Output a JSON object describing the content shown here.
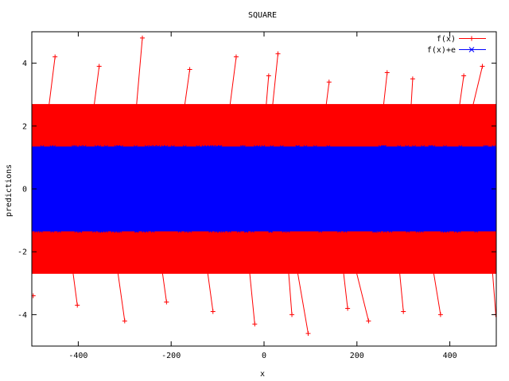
{
  "chart_data": {
    "type": "line",
    "title": "SQUARE",
    "xlabel": "x",
    "ylabel": "predictions",
    "xlim": [
      -500,
      500
    ],
    "ylim": [
      -5,
      5
    ],
    "xticks": [
      -400,
      -200,
      0,
      200,
      400
    ],
    "yticks": [
      -4,
      -2,
      0,
      2,
      4
    ],
    "xtick_labels": [
      "-400",
      "-200",
      "0",
      "200",
      "400"
    ],
    "ytick_labels": [
      "-4",
      "-2",
      "0",
      "2",
      "4"
    ],
    "grid": false,
    "legend_position": "top-right",
    "series": [
      {
        "name": "f(x)",
        "color": "#ff0000",
        "marker": "plus",
        "approx_y_range": [
          -4.6,
          4.8
        ],
        "dense_band": [
          -2.7,
          2.7
        ],
        "x": [
          -497,
          -450,
          -402,
          -355,
          -300,
          -262,
          -210,
          -160,
          -110,
          -60,
          -20,
          10,
          30,
          60,
          95,
          140,
          180,
          225,
          265,
          300,
          320,
          380,
          430,
          470,
          499
        ],
        "y": [
          -3.4,
          4.2,
          -3.7,
          3.9,
          -4.2,
          4.8,
          -3.6,
          3.8,
          -3.9,
          4.2,
          -4.3,
          3.6,
          4.3,
          -4.0,
          -4.6,
          3.4,
          -3.8,
          -4.2,
          3.7,
          -3.9,
          3.5,
          -4.0,
          3.6,
          3.9,
          -4.0
        ]
      },
      {
        "name": "f(x)+e",
        "color": "#0000ff",
        "marker": "cross",
        "approx_y_range": [
          -1.35,
          1.35
        ]
      }
    ]
  },
  "colors": {
    "series1": "#ff0000",
    "series2": "#0000ff",
    "axes": "#000000",
    "background": "#ffffff"
  }
}
